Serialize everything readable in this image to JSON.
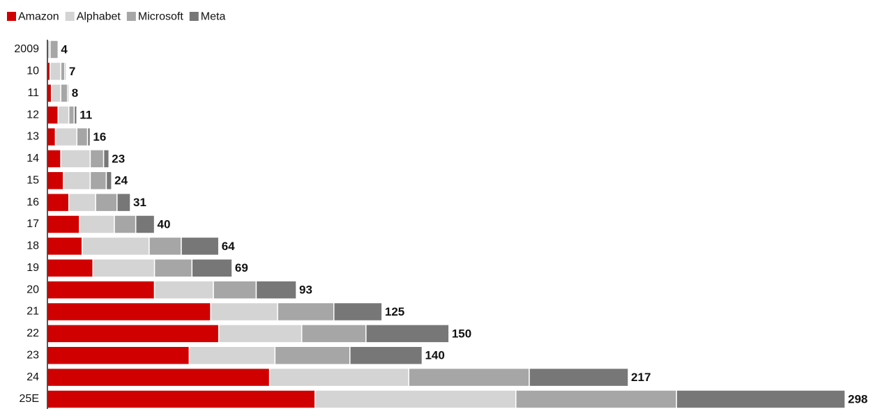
{
  "chart_data": {
    "type": "stacked-bar-horizontal",
    "categories": [
      "2009",
      "10",
      "11",
      "12",
      "13",
      "14",
      "15",
      "16",
      "17",
      "18",
      "19",
      "20",
      "21",
      "22",
      "23",
      "24",
      "25E"
    ],
    "series": [
      {
        "name": "Amazon",
        "color": "#d10000",
        "values": [
          0,
          1,
          1.5,
          4,
          3,
          5,
          6,
          8,
          12,
          13,
          17,
          40,
          61,
          64,
          53,
          83,
          100
        ]
      },
      {
        "name": "Alphabet",
        "color": "#d4d4d4",
        "values": [
          1,
          4,
          3.5,
          4,
          8,
          11,
          10,
          10,
          13,
          25,
          23,
          22,
          25,
          31,
          32,
          52,
          75
        ]
      },
      {
        "name": "Microsoft",
        "color": "#a6a6a6",
        "values": [
          3,
          1.5,
          2.5,
          2,
          4,
          5,
          6,
          8,
          8,
          12,
          14,
          16,
          21,
          24,
          28,
          45,
          60
        ]
      },
      {
        "name": "Meta",
        "color": "#777777",
        "values": [
          0,
          0.5,
          0.5,
          1,
          1,
          2,
          2,
          5,
          7,
          14,
          15,
          15,
          18,
          31,
          27,
          37,
          63
        ]
      }
    ],
    "totals": [
      4,
      7,
      8,
      11,
      16,
      23,
      24,
      31,
      40,
      64,
      69,
      93,
      125,
      150,
      140,
      217,
      298
    ],
    "xlim": [
      0,
      298
    ]
  }
}
